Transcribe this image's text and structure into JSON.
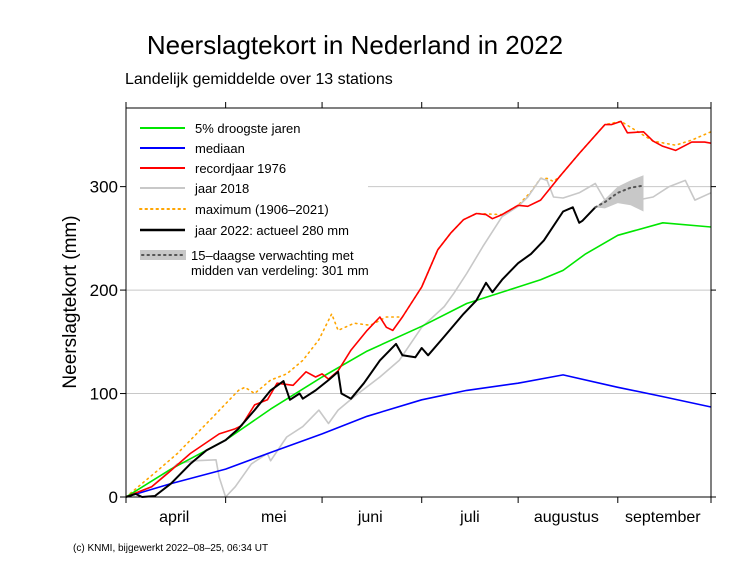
{
  "chart_data": {
    "type": "line",
    "title": "Neerslagtekort in Nederland in 2022",
    "subtitle": "Landelijk gemiddelde over 13 stations",
    "ylabel": "Neerslagtekort (mm)",
    "xlabel": "",
    "ylim": [
      0,
      376
    ],
    "xlim": [
      "04-01",
      "09-30"
    ],
    "yticks": [
      0,
      100,
      200,
      300
    ],
    "xticks": [
      "04-01",
      "05-01",
      "06-01",
      "07-01",
      "08-01",
      "09-01",
      "09-30"
    ],
    "month_labels": [
      {
        "label": "april",
        "at": "04-16"
      },
      {
        "label": "mei",
        "at": "05-16"
      },
      {
        "label": "juni",
        "at": "06-16"
      },
      {
        "label": "juli",
        "at": "07-16"
      },
      {
        "label": "augustus",
        "at": "08-16"
      },
      {
        "label": "september",
        "at": "09-15"
      }
    ],
    "grid": "horizontal",
    "legend_position": "top-left",
    "series": [
      {
        "name": "5% droogste jaren",
        "color": "#00e600",
        "style": "solid",
        "x": [
          "04-01",
          "04-15",
          "05-01",
          "05-15",
          "06-01",
          "06-15",
          "07-01",
          "07-15",
          "08-01",
          "08-08",
          "08-15",
          "08-22",
          "09-01",
          "09-15",
          "09-30"
        ],
        "y": [
          0,
          27,
          55,
          85,
          116,
          141,
          165,
          187,
          203,
          210,
          219,
          235,
          253,
          265,
          261
        ]
      },
      {
        "name": "mediaan",
        "color": "#0000ff",
        "style": "solid",
        "x": [
          "04-01",
          "04-15",
          "05-01",
          "05-15",
          "06-01",
          "06-15",
          "07-01",
          "07-15",
          "08-01",
          "08-15",
          "09-01",
          "09-15",
          "09-30"
        ],
        "y": [
          0,
          13,
          27,
          43,
          61,
          78,
          94,
          103,
          110,
          118,
          106,
          97,
          87
        ]
      },
      {
        "name": "recordjaar 1976",
        "color": "#ff0000",
        "style": "solid",
        "x": [
          "04-01",
          "04-05",
          "04-09",
          "04-14",
          "04-21",
          "04-30",
          "05-04",
          "05-06",
          "05-10",
          "05-14",
          "05-17",
          "05-22",
          "05-26",
          "05-29",
          "06-01",
          "06-03",
          "06-06",
          "06-10",
          "06-15",
          "06-19",
          "06-21",
          "06-23",
          "06-26",
          "07-01",
          "07-06",
          "07-10",
          "07-14",
          "07-18",
          "07-21",
          "07-23",
          "07-26",
          "08-01",
          "08-04",
          "08-08",
          "08-14",
          "08-20",
          "08-28",
          "08-30",
          "09-02",
          "09-04",
          "09-09",
          "09-12",
          "09-15",
          "09-19",
          "09-24",
          "09-28",
          "09-30"
        ],
        "y": [
          0,
          5,
          10,
          23,
          42,
          61,
          66,
          69,
          89,
          94,
          110,
          108,
          121,
          116,
          119,
          114,
          122,
          142,
          161,
          174,
          164,
          161,
          174,
          203,
          239,
          255,
          268,
          274,
          273,
          269,
          273,
          282,
          281,
          287,
          310,
          332,
          360,
          360,
          363,
          352,
          353,
          344,
          339,
          335,
          343,
          343,
          342
        ]
      },
      {
        "name": "jaar 2018",
        "color": "#c8c8c8",
        "style": "solid",
        "x": [
          "04-01",
          "04-09",
          "04-17",
          "04-22",
          "04-29",
          "04-30",
          "05-01",
          "05-04",
          "05-09",
          "05-14",
          "05-15",
          "05-20",
          "05-25",
          "05-30",
          "06-03",
          "06-06",
          "06-11",
          "06-19",
          "06-25",
          "07-01",
          "07-08",
          "07-11",
          "07-15",
          "07-20",
          "07-26",
          "07-31",
          "08-04",
          "08-08",
          "08-10",
          "08-12",
          "08-15",
          "08-20",
          "08-25",
          "08-28",
          "09-02",
          "09-07",
          "09-12",
          "09-17",
          "09-22",
          "09-25",
          "09-30"
        ],
        "y": [
          0,
          10,
          32,
          35,
          36,
          19,
          0,
          10,
          32,
          42,
          35,
          58,
          68,
          84,
          71,
          84,
          97,
          116,
          132,
          164,
          184,
          197,
          216,
          242,
          271,
          281,
          290,
          308,
          306,
          290,
          289,
          294,
          303,
          287,
          300,
          287,
          290,
          300,
          306,
          287,
          294
        ]
      },
      {
        "name": "maximum (1906–2021)",
        "color": "#ffa500",
        "style": "dotted",
        "x": [
          "04-01",
          "04-11",
          "04-17",
          "04-27",
          "05-05",
          "05-07",
          "05-10",
          "05-15",
          "05-20",
          "05-25",
          "05-30",
          "06-04",
          "06-06",
          "06-11",
          "06-16",
          "06-21",
          "06-26",
          "07-01",
          "07-06",
          "07-10",
          "07-14",
          "07-18",
          "07-26",
          "08-01",
          "08-05",
          "08-08",
          "08-10",
          "08-12",
          "08-14",
          "08-20",
          "08-28",
          "09-02",
          "09-12",
          "09-19",
          "09-24",
          "09-30"
        ],
        "y": [
          0,
          26,
          42,
          74,
          103,
          106,
          100,
          113,
          119,
          132,
          152,
          177,
          161,
          168,
          166,
          174,
          174,
          203,
          239,
          255,
          268,
          274,
          273,
          282,
          295,
          308,
          308,
          305,
          310,
          332,
          360,
          363,
          344,
          340,
          345,
          353
        ]
      },
      {
        "name": "jaar 2022: actueel 280 mm",
        "color": "#000000",
        "style": "solid",
        "x": [
          "04-01",
          "04-04",
          "04-06",
          "04-10",
          "04-15",
          "04-21",
          "04-26",
          "05-01",
          "05-05",
          "05-10",
          "05-15",
          "05-19",
          "05-21",
          "05-24",
          "05-25",
          "05-29",
          "06-03",
          "06-06",
          "06-07",
          "06-10",
          "06-14",
          "06-19",
          "06-24",
          "06-26",
          "06-30",
          "07-01",
          "07-03",
          "07-08",
          "07-14",
          "07-18",
          "07-21",
          "07-23",
          "07-26",
          "08-01",
          "08-05",
          "08-09",
          "08-15",
          "08-18",
          "08-20",
          "08-21",
          "08-25"
        ],
        "y": [
          0,
          3,
          0,
          1,
          13,
          32,
          45,
          55,
          66,
          84,
          103,
          112,
          94,
          100,
          95,
          103,
          113,
          121,
          100,
          95,
          110,
          132,
          148,
          137,
          135,
          144,
          137,
          155,
          177,
          190,
          207,
          198,
          210,
          226,
          235,
          248,
          276,
          280,
          265,
          267,
          280
        ]
      },
      {
        "name": "15–daagse verwachting met midden van verdeling: 301 mm",
        "color": "#555555",
        "band_color": "#c8c8c8",
        "style": "dotted",
        "x": [
          "08-25",
          "08-28",
          "09-01",
          "09-05",
          "09-09"
        ],
        "y": [
          280,
          285,
          294,
          299,
          301
        ],
        "lower": [
          280,
          279,
          284,
          282,
          276
        ],
        "upper": [
          280,
          288,
          300,
          306,
          311
        ]
      }
    ],
    "legend": [
      "5% droogste jaren",
      "mediaan",
      "recordjaar 1976",
      "jaar 2018",
      "maximum (1906–2021)",
      "jaar 2022: actueel 280 mm",
      "15–daagse verwachting met",
      "midden van verdeling: 301 mm"
    ],
    "footer": "(c) KNMI, bijgewerkt 2022–08–25, 06:34 UT"
  }
}
